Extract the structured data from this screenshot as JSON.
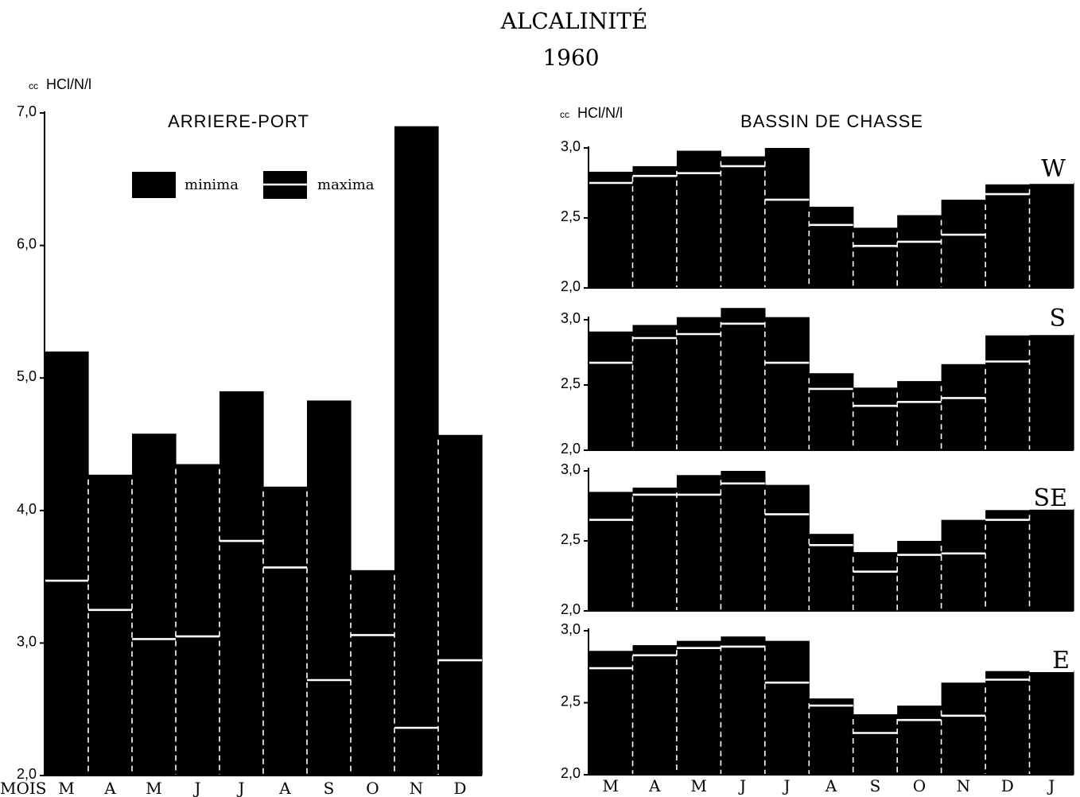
{
  "title": "ALCALINITÉ",
  "year": "1960",
  "x_axis_label": "MOIS",
  "chart_data": [
    {
      "type": "bar",
      "title": "ARRIERE-PORT",
      "ylabel_prefix": "cc",
      "ylabel": "HCl/N/l",
      "ylim": [
        2.0,
        7.0
      ],
      "yticks": [
        "2,0",
        "3,0",
        "4,0",
        "5,0",
        "6,0",
        "7,0"
      ],
      "categories": [
        "M",
        "A",
        "M",
        "J",
        "J",
        "A",
        "S",
        "O",
        "N",
        "D"
      ],
      "legend": {
        "minima": "minima",
        "maxima": "maxima"
      },
      "series": [
        {
          "name": "maxima",
          "values": [
            5.2,
            4.27,
            4.58,
            4.35,
            4.9,
            4.18,
            4.83,
            3.55,
            6.9,
            4.57
          ]
        },
        {
          "name": "minima",
          "values": [
            3.47,
            3.25,
            3.03,
            3.05,
            3.77,
            3.57,
            2.72,
            3.06,
            2.36,
            2.87
          ]
        }
      ]
    },
    {
      "type": "bar",
      "title": "BASSIN DE CHASSE",
      "ylabel_prefix": "cc",
      "ylabel": "HCl/N/l",
      "station": "W",
      "ylim": [
        2.0,
        3.0
      ],
      "yticks": [
        "2,0",
        "2,5",
        "3,0"
      ],
      "categories": [
        "M",
        "A",
        "M",
        "J",
        "J",
        "A",
        "S",
        "O",
        "N",
        "D",
        "J"
      ],
      "series": [
        {
          "name": "maxima",
          "values": [
            2.83,
            2.87,
            2.98,
            2.94,
            3.0,
            2.58,
            2.43,
            2.52,
            2.63,
            2.74,
            2.75
          ]
        },
        {
          "name": "minima",
          "values": [
            2.75,
            2.8,
            2.82,
            2.87,
            2.63,
            2.45,
            2.3,
            2.33,
            2.38,
            2.67,
            2.75
          ]
        }
      ]
    },
    {
      "type": "bar",
      "station": "S",
      "ylim": [
        2.0,
        3.0
      ],
      "yticks": [
        "2,0",
        "2,5",
        "3,0"
      ],
      "categories": [
        "M",
        "A",
        "M",
        "J",
        "J",
        "A",
        "S",
        "O",
        "N",
        "D",
        "J"
      ],
      "series": [
        {
          "name": "maxima",
          "values": [
            2.91,
            2.96,
            3.02,
            3.09,
            3.02,
            2.59,
            2.48,
            2.53,
            2.66,
            2.88,
            2.89
          ]
        },
        {
          "name": "minima",
          "values": [
            2.67,
            2.86,
            2.89,
            2.97,
            2.67,
            2.47,
            2.34,
            2.37,
            2.4,
            2.68,
            2.89
          ]
        }
      ]
    },
    {
      "type": "bar",
      "station": "SE",
      "ylim": [
        2.0,
        3.0
      ],
      "yticks": [
        "2,0",
        "2,5",
        "3,0"
      ],
      "categories": [
        "M",
        "A",
        "M",
        "J",
        "J",
        "A",
        "S",
        "O",
        "N",
        "D",
        "J"
      ],
      "series": [
        {
          "name": "maxima",
          "values": [
            2.85,
            2.88,
            2.97,
            3.0,
            2.9,
            2.55,
            2.42,
            2.5,
            2.65,
            2.72,
            2.73
          ]
        },
        {
          "name": "minima",
          "values": [
            2.65,
            2.83,
            2.83,
            2.91,
            2.69,
            2.47,
            2.28,
            2.4,
            2.41,
            2.65,
            2.73
          ]
        }
      ]
    },
    {
      "type": "bar",
      "station": "E",
      "ylim": [
        2.0,
        3.0
      ],
      "yticks": [
        "2,0",
        "2,5",
        "3,0"
      ],
      "categories": [
        "M",
        "A",
        "M",
        "J",
        "J",
        "A",
        "S",
        "O",
        "N",
        "D",
        "J"
      ],
      "series": [
        {
          "name": "maxima",
          "values": [
            2.86,
            2.9,
            2.93,
            2.96,
            2.93,
            2.53,
            2.42,
            2.48,
            2.64,
            2.72,
            2.72
          ]
        },
        {
          "name": "minima",
          "values": [
            2.74,
            2.83,
            2.88,
            2.89,
            2.64,
            2.48,
            2.29,
            2.38,
            2.41,
            2.66,
            2.72
          ]
        }
      ]
    }
  ]
}
